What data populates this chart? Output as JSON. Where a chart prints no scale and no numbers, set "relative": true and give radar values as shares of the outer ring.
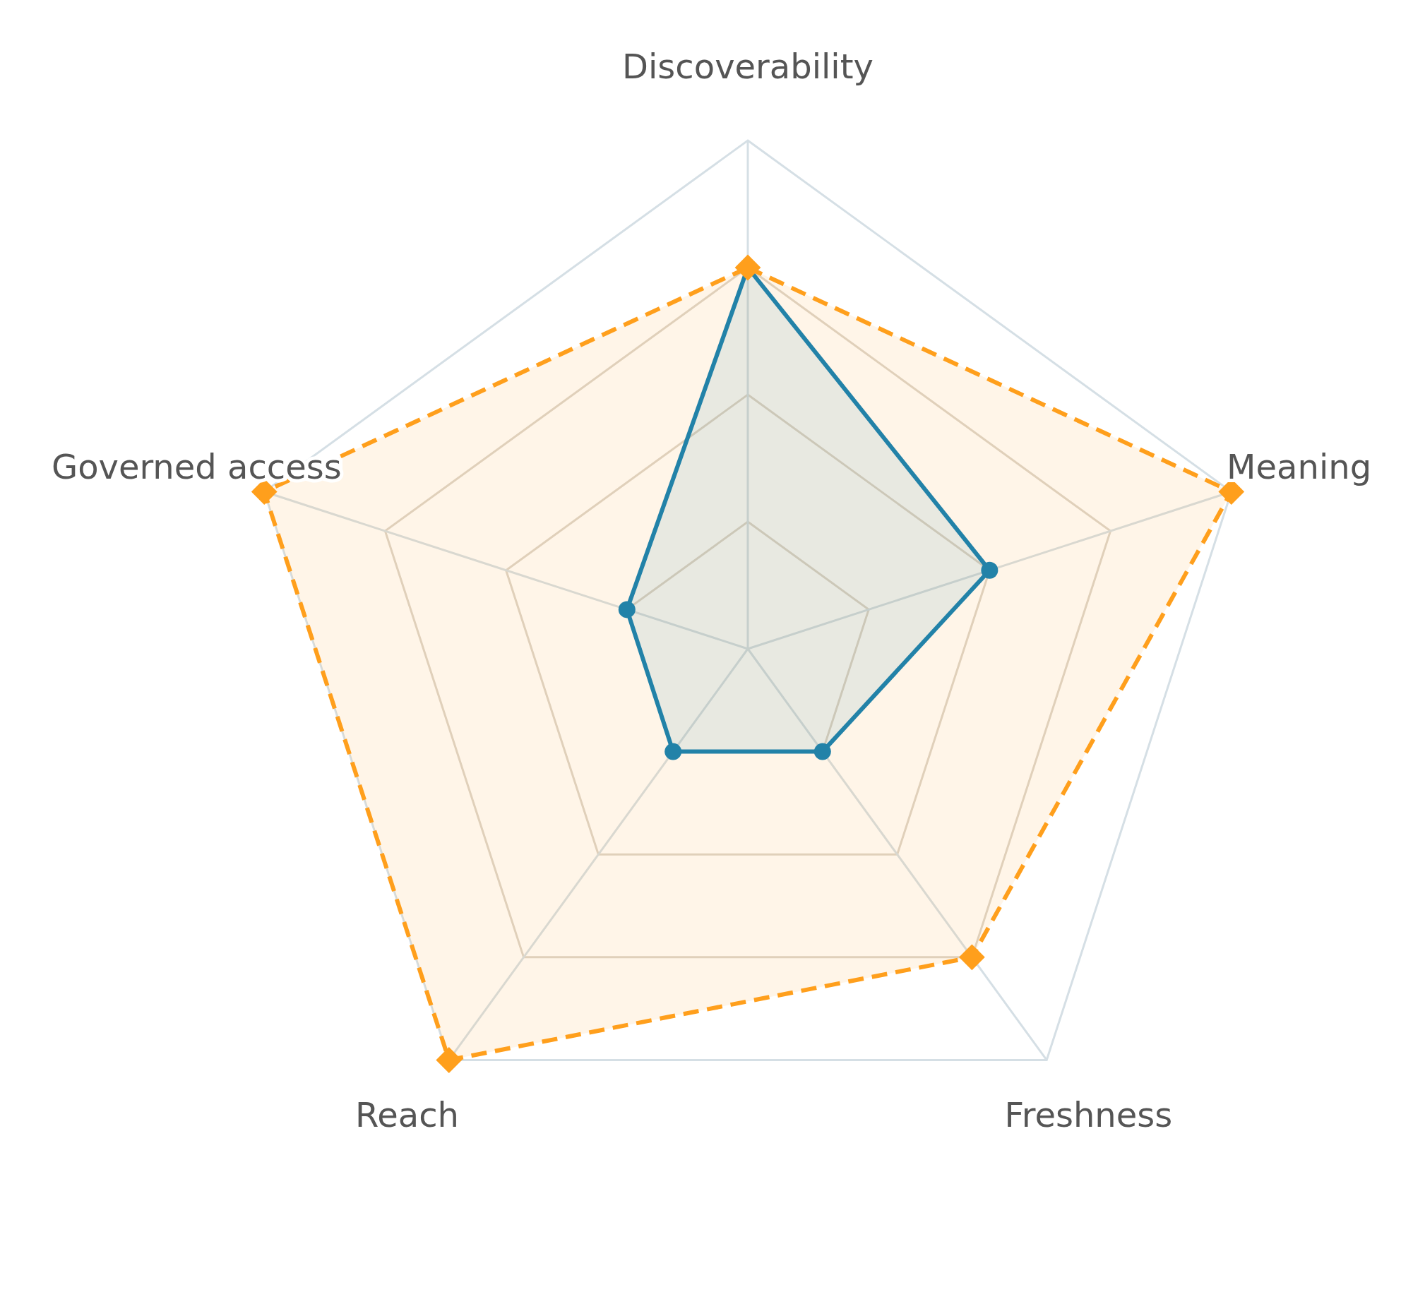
{
  "chart_data": {
    "type": "radar",
    "relative": true,
    "grid": true,
    "categories": [
      "Discoverability",
      "Meaning",
      "Freshness",
      "Reach",
      "Governed access"
    ],
    "series": [
      {
        "color": "#0a7fb8",
        "values": [
          0.75,
          0.5,
          0.25,
          0.25,
          0.25
        ],
        "marker": "circle",
        "line_style": "solid"
      },
      {
        "color": "#ff9f1c",
        "values": [
          0.75,
          1,
          0.75,
          1,
          1
        ],
        "marker": "diamond",
        "line_style": "dashed"
      }
    ]
  }
}
